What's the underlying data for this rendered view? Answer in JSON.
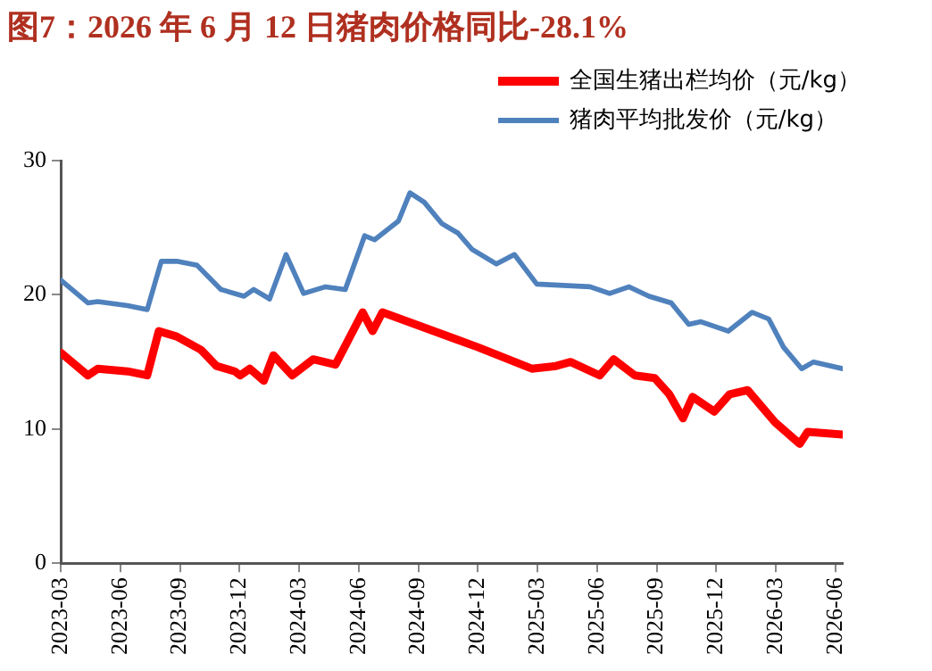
{
  "chart_data": {
    "type": "line",
    "title": "图7：2026 年 6 月 12 日猪肉价格同比-28.1%",
    "xlim": [
      "2023-03-01",
      "2026-06-12"
    ],
    "xticks": [
      "2023-03",
      "2023-06",
      "2023-09",
      "2023-12",
      "2024-03",
      "2024-06",
      "2024-09",
      "2024-12",
      "2025-03",
      "2025-06",
      "2025-09",
      "2025-12",
      "2026-03",
      "2026-06"
    ],
    "ylim": [
      0,
      30
    ],
    "yticks": [
      0,
      10,
      20,
      30
    ],
    "grid": false,
    "legend": "top right",
    "marker": "none",
    "line_style": "solid",
    "series": [
      {
        "name": "全国生猪出栏均价（元/kg）",
        "color": "#ff0000",
        "x": [
          "2023-03-01",
          "2023-04-12",
          "2023-04-27",
          "2023-06-12",
          "2023-07-12",
          "2023-07-30",
          "2023-08-27",
          "2023-10-03",
          "2023-10-27",
          "2023-11-24",
          "2023-12-02",
          "2023-12-17",
          "2024-01-08",
          "2024-01-23",
          "2024-02-20",
          "2024-03-23",
          "2024-04-26",
          "2024-06-07",
          "2024-06-22",
          "2024-07-07",
          "2024-12-01",
          "2025-02-21",
          "2025-03-30",
          "2025-04-21",
          "2025-06-05",
          "2025-06-26",
          "2025-07-29",
          "2025-08-29",
          "2025-09-20",
          "2025-10-11",
          "2025-10-26",
          "2025-11-28",
          "2025-12-22",
          "2026-01-19",
          "2026-02-28",
          "2026-04-07",
          "2026-04-19",
          "2026-06-12"
        ],
        "values": [
          15.7,
          14.0,
          14.5,
          14.3,
          14.0,
          17.3,
          16.9,
          15.9,
          14.7,
          14.3,
          14.0,
          14.5,
          13.6,
          15.5,
          14.0,
          15.2,
          14.8,
          18.7,
          17.3,
          18.7,
          16.1,
          14.5,
          14.7,
          15.0,
          14.0,
          15.2,
          14.0,
          13.8,
          12.6,
          10.8,
          12.4,
          11.3,
          12.6,
          12.9,
          10.5,
          8.9,
          9.8,
          9.6
        ]
      },
      {
        "name": "猪肉平均批发价（元/kg）",
        "color": "#4f81bd",
        "x": [
          "2023-03-01",
          "2023-04-12",
          "2023-04-27",
          "2023-06-12",
          "2023-07-12",
          "2023-08-03",
          "2023-08-27",
          "2023-09-27",
          "2023-11-03",
          "2023-12-08",
          "2023-12-23",
          "2024-01-17",
          "2024-02-11",
          "2024-03-08",
          "2024-04-11",
          "2024-05-11",
          "2024-06-10",
          "2024-06-25",
          "2024-08-01",
          "2024-08-19",
          "2024-09-10",
          "2024-10-07",
          "2024-11-01",
          "2024-11-22",
          "2024-12-30",
          "2025-01-27",
          "2025-02-28",
          "2025-05-21",
          "2025-06-20",
          "2025-07-20",
          "2025-08-20",
          "2025-09-23",
          "2025-10-20",
          "2025-11-08",
          "2025-12-20",
          "2026-01-26",
          "2026-02-19",
          "2026-03-13",
          "2026-04-10",
          "2026-04-28",
          "2026-06-12"
        ],
        "values": [
          21.1,
          19.4,
          19.5,
          19.2,
          18.9,
          22.5,
          22.5,
          22.2,
          20.4,
          19.9,
          20.4,
          19.7,
          23.0,
          20.1,
          20.6,
          20.4,
          24.4,
          24.1,
          25.5,
          27.6,
          26.9,
          25.3,
          24.6,
          23.4,
          22.3,
          23.0,
          20.8,
          20.6,
          20.1,
          20.6,
          19.9,
          19.4,
          17.8,
          18.0,
          17.3,
          18.7,
          18.2,
          16.1,
          14.5,
          15.0,
          14.5
        ]
      }
    ]
  }
}
